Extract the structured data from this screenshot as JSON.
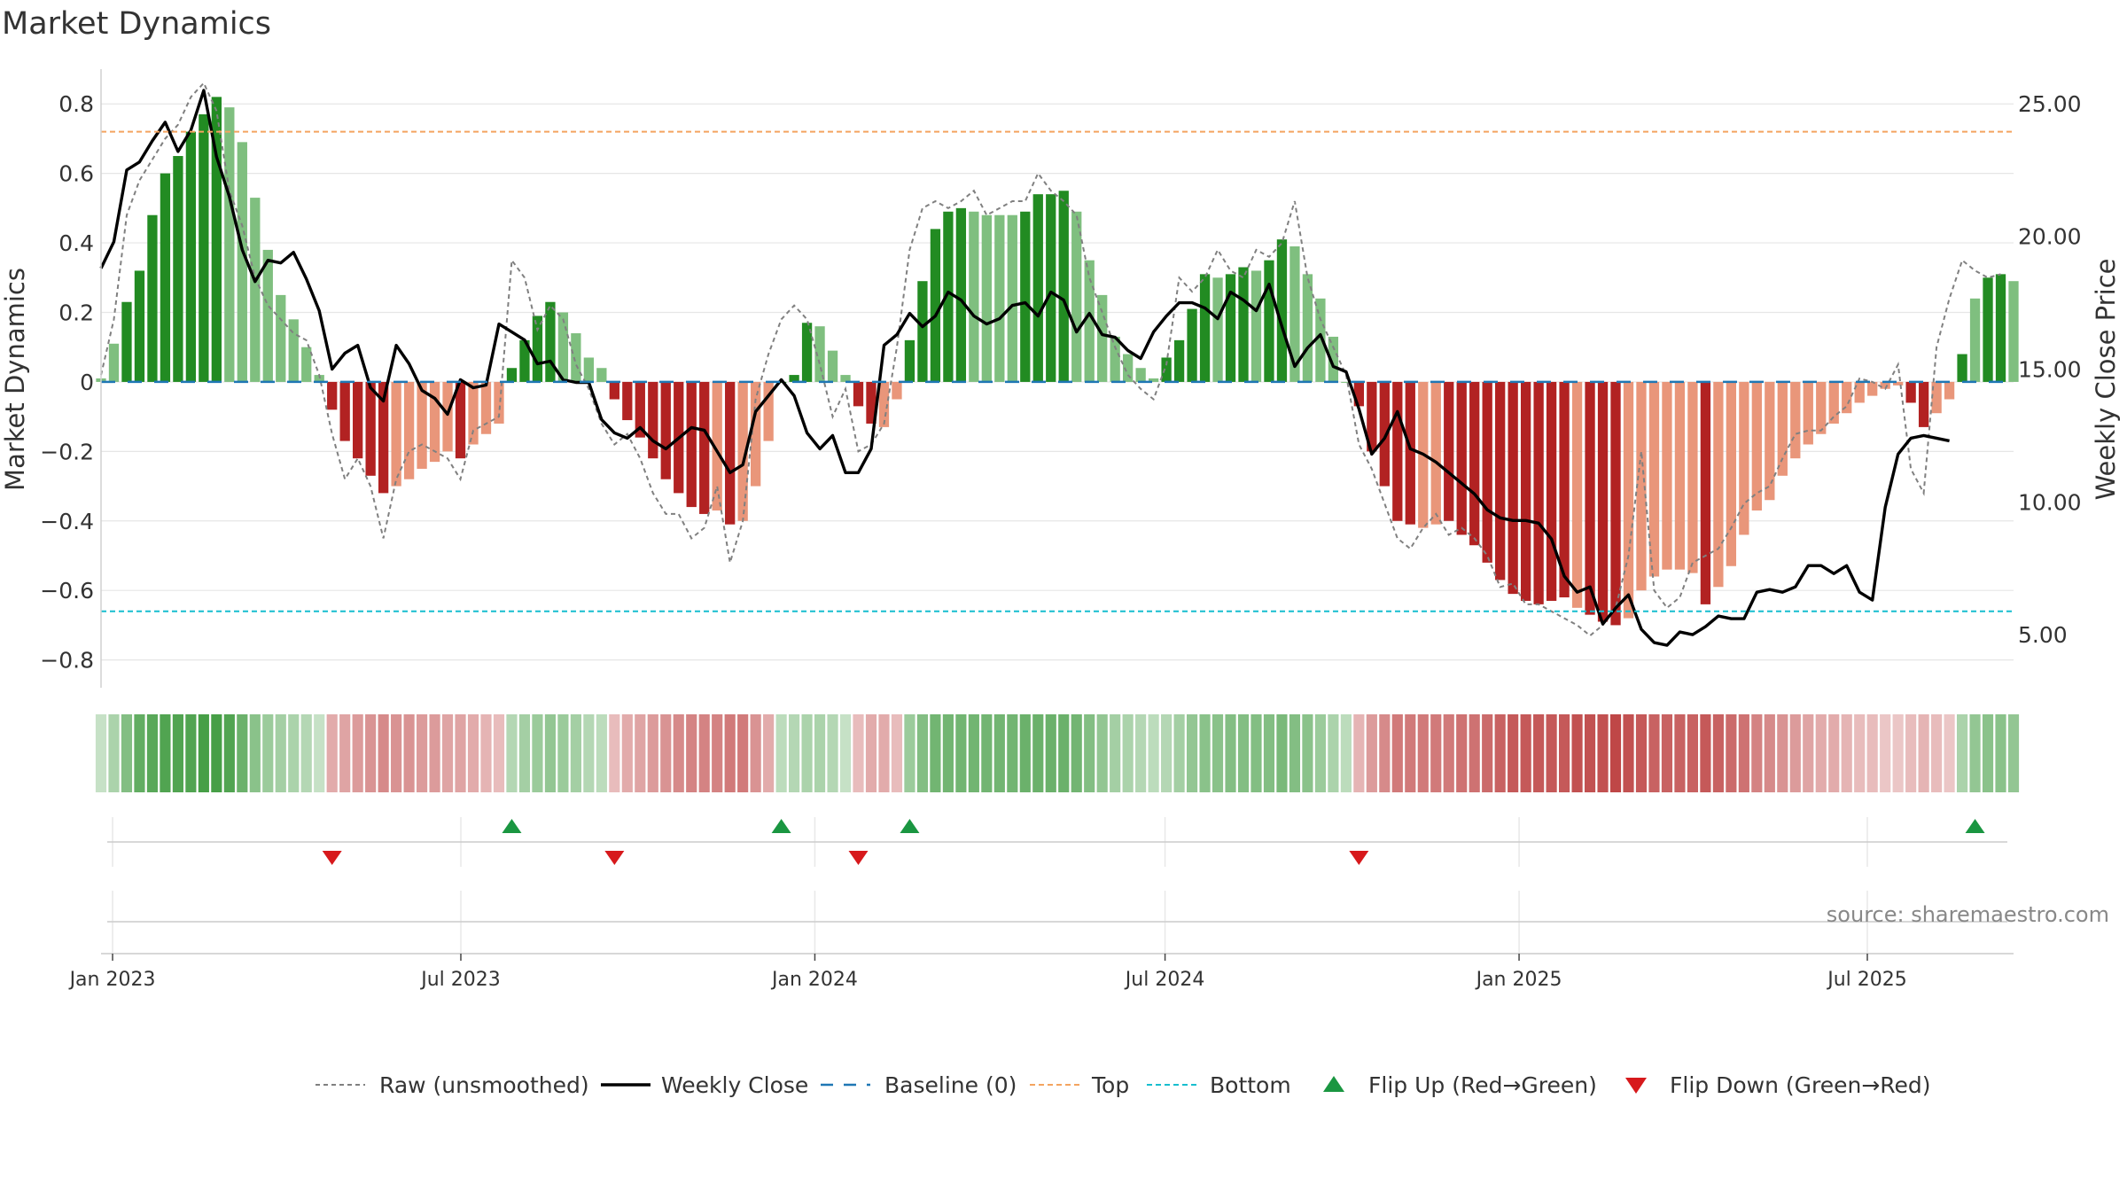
{
  "chart_data": {
    "type": "bar",
    "title": "Market Dynamics",
    "ylabel": "Market Dynamics",
    "y2label": "Weekly Close Price",
    "source": "source: sharemaestro.com",
    "ylim": [
      -0.88,
      0.9
    ],
    "y2lim": [
      3.0,
      26.3
    ],
    "yticks": [
      "0.8",
      "0.6",
      "0.4",
      "0.2",
      "0",
      "−0.2",
      "−0.4",
      "−0.6",
      "−0.8"
    ],
    "y2ticks": [
      "25.00",
      "20.00",
      "15.00",
      "10.00",
      "5.00"
    ],
    "ytick_values": [
      0.8,
      0.6,
      0.4,
      0.2,
      0,
      -0.2,
      -0.4,
      -0.6,
      -0.8
    ],
    "y2tick_values": [
      25,
      20,
      15,
      10,
      5
    ],
    "x_start": "2022-12-26",
    "x_end": "2025-09-15",
    "xticks": [
      {
        "date": "2023-01-01",
        "label": "Jan 2023"
      },
      {
        "date": "2023-07-01",
        "label": "Jul 2023"
      },
      {
        "date": "2024-01-01",
        "label": "Jan 2024"
      },
      {
        "date": "2024-07-01",
        "label": "Jul 2024"
      },
      {
        "date": "2025-01-01",
        "label": "Jan 2025"
      },
      {
        "date": "2025-07-01",
        "label": "Jul 2025"
      }
    ],
    "top_threshold": 0.72,
    "bottom_threshold": -0.66,
    "baseline": 0,
    "grid": true,
    "legend_position": "bottom",
    "legend": [
      {
        "key": "raw",
        "label": "Raw (unsmoothed)"
      },
      {
        "key": "close",
        "label": "Weekly Close"
      },
      {
        "key": "baseline",
        "label": "Baseline (0)"
      },
      {
        "key": "top",
        "label": "Top"
      },
      {
        "key": "bottom",
        "label": "Bottom"
      },
      {
        "key": "flipup",
        "label": "Flip Up (Red→Green)"
      },
      {
        "key": "flipdown",
        "label": "Flip Down (Green→Red)"
      }
    ],
    "colors": {
      "pos_strong": "#228b22",
      "pos_weak": "#7fbf7f",
      "neg_strong": "#b22222",
      "neg_weak": "#e9967a",
      "close": "#000000",
      "raw": "#808080",
      "baseline": "#1f77b4",
      "top": "#f4a460",
      "bottom": "#17becf",
      "flip_up": "#1a9641",
      "flip_down": "#d7191c"
    },
    "dynamics": [
      0.01,
      0.11,
      0.23,
      0.32,
      0.48,
      0.6,
      0.65,
      0.72,
      0.77,
      0.82,
      0.79,
      0.69,
      0.53,
      0.38,
      0.25,
      0.18,
      0.1,
      0.02,
      -0.08,
      -0.17,
      -0.22,
      -0.27,
      -0.32,
      -0.3,
      -0.28,
      -0.25,
      -0.23,
      -0.2,
      -0.22,
      -0.18,
      -0.15,
      -0.12,
      0.04,
      0.12,
      0.19,
      0.23,
      0.2,
      0.14,
      0.07,
      0.04,
      -0.05,
      -0.11,
      -0.16,
      -0.22,
      -0.28,
      -0.32,
      -0.36,
      -0.38,
      -0.37,
      -0.41,
      -0.4,
      -0.3,
      -0.17,
      0.0,
      0.02,
      0.17,
      0.16,
      0.09,
      0.02,
      -0.07,
      -0.12,
      -0.13,
      -0.05,
      0.12,
      0.29,
      0.44,
      0.49,
      0.5,
      0.49,
      0.48,
      0.48,
      0.48,
      0.49,
      0.54,
      0.54,
      0.55,
      0.49,
      0.35,
      0.25,
      0.13,
      0.08,
      0.04,
      0.01,
      0.07,
      0.12,
      0.21,
      0.31,
      0.3,
      0.31,
      0.33,
      0.32,
      0.35,
      0.41,
      0.39,
      0.31,
      0.24,
      0.13,
      0.0,
      -0.07,
      -0.2,
      -0.3,
      -0.4,
      -0.41,
      -0.42,
      -0.41,
      -0.4,
      -0.44,
      -0.47,
      -0.52,
      -0.57,
      -0.61,
      -0.63,
      -0.64,
      -0.63,
      -0.62,
      -0.65,
      -0.67,
      -0.69,
      -0.7,
      -0.68,
      -0.6,
      -0.56,
      -0.54,
      -0.54,
      -0.55,
      -0.64,
      -0.59,
      -0.53,
      -0.44,
      -0.37,
      -0.34,
      -0.27,
      -0.22,
      -0.18,
      -0.15,
      -0.12,
      -0.09,
      -0.06,
      -0.04,
      -0.02,
      -0.01,
      -0.06,
      -0.13,
      -0.09,
      -0.05,
      0.08,
      0.24,
      0.3,
      0.31,
      0.29
    ],
    "strength": [
      0,
      0,
      1,
      1,
      1,
      1,
      1,
      1,
      1,
      1,
      0,
      0,
      0,
      0,
      0,
      0,
      0,
      0,
      1,
      1,
      1,
      1,
      1,
      0,
      0,
      0,
      0,
      0,
      1,
      0,
      0,
      0,
      1,
      1,
      1,
      1,
      0,
      0,
      0,
      0,
      1,
      1,
      1,
      1,
      1,
      1,
      1,
      1,
      0,
      1,
      0,
      0,
      0,
      1,
      1,
      1,
      0,
      0,
      0,
      1,
      1,
      0,
      0,
      1,
      1,
      1,
      1,
      1,
      0,
      0,
      0,
      0,
      1,
      1,
      1,
      1,
      0,
      0,
      0,
      0,
      0,
      0,
      0,
      1,
      1,
      1,
      1,
      0,
      1,
      1,
      0,
      1,
      1,
      0,
      0,
      0,
      0,
      0,
      1,
      1,
      1,
      1,
      1,
      0,
      0,
      1,
      1,
      1,
      1,
      1,
      1,
      1,
      1,
      1,
      1,
      0,
      1,
      1,
      1,
      0,
      0,
      0,
      0,
      0,
      0,
      1,
      0,
      0,
      0,
      0,
      0,
      0,
      0,
      0,
      0,
      0,
      0,
      0,
      0,
      0,
      0,
      1,
      1,
      0,
      0,
      1,
      0,
      1,
      1,
      0
    ],
    "raw": [
      0.02,
      0.18,
      0.48,
      0.58,
      0.64,
      0.7,
      0.74,
      0.82,
      0.86,
      0.78,
      0.55,
      0.45,
      0.3,
      0.22,
      0.18,
      0.14,
      0.12,
      0.02,
      -0.15,
      -0.28,
      -0.22,
      -0.3,
      -0.45,
      -0.28,
      -0.2,
      -0.18,
      -0.2,
      -0.22,
      -0.28,
      -0.14,
      -0.12,
      -0.1,
      0.35,
      0.3,
      0.15,
      0.22,
      0.18,
      0.05,
      -0.02,
      -0.12,
      -0.18,
      -0.15,
      -0.22,
      -0.32,
      -0.38,
      -0.38,
      -0.45,
      -0.42,
      -0.3,
      -0.52,
      -0.4,
      -0.05,
      0.08,
      0.18,
      0.22,
      0.18,
      0.05,
      -0.1,
      -0.02,
      -0.2,
      -0.18,
      -0.12,
      0.1,
      0.38,
      0.5,
      0.52,
      0.5,
      0.52,
      0.55,
      0.48,
      0.5,
      0.52,
      0.52,
      0.6,
      0.55,
      0.52,
      0.48,
      0.3,
      0.2,
      0.1,
      0.02,
      -0.02,
      -0.05,
      0.05,
      0.3,
      0.26,
      0.3,
      0.38,
      0.32,
      0.3,
      0.38,
      0.36,
      0.4,
      0.52,
      0.3,
      0.18,
      0.1,
      0.02,
      -0.18,
      -0.25,
      -0.35,
      -0.45,
      -0.48,
      -0.42,
      -0.38,
      -0.44,
      -0.42,
      -0.45,
      -0.5,
      -0.59,
      -0.58,
      -0.64,
      -0.64,
      -0.66,
      -0.68,
      -0.7,
      -0.73,
      -0.7,
      -0.65,
      -0.5,
      -0.2,
      -0.6,
      -0.65,
      -0.62,
      -0.52,
      -0.5,
      -0.48,
      -0.42,
      -0.35,
      -0.32,
      -0.3,
      -0.22,
      -0.15,
      -0.14,
      -0.14,
      -0.1,
      -0.07,
      0.01,
      0.0,
      -0.02,
      0.05,
      -0.25,
      -0.32,
      0.1,
      0.24,
      0.35,
      0.32,
      0.3,
      0.31
    ],
    "close": [
      18.8,
      19.8,
      22.5,
      22.8,
      23.6,
      24.3,
      23.2,
      24.0,
      25.5,
      23.0,
      21.5,
      19.5,
      18.3,
      19.1,
      19.0,
      19.4,
      18.4,
      17.2,
      15.0,
      15.6,
      15.9,
      14.3,
      13.8,
      15.9,
      15.2,
      14.2,
      13.9,
      13.3,
      14.6,
      14.3,
      14.4,
      16.7,
      16.4,
      16.1,
      15.2,
      15.3,
      14.6,
      14.5,
      14.5,
      13.1,
      12.6,
      12.4,
      12.8,
      12.3,
      12.0,
      12.4,
      12.8,
      12.7,
      11.9,
      11.1,
      11.4,
      13.4,
      14.0,
      14.6,
      14.0,
      12.6,
      12.0,
      12.5,
      11.1,
      11.1,
      12.0,
      15.9,
      16.3,
      17.1,
      16.6,
      17.0,
      17.9,
      17.6,
      17.0,
      16.7,
      16.9,
      17.4,
      17.5,
      17.0,
      17.9,
      17.6,
      16.4,
      17.1,
      16.3,
      16.2,
      15.7,
      15.4,
      16.4,
      17.0,
      17.5,
      17.5,
      17.3,
      16.9,
      17.9,
      17.6,
      17.2,
      18.2,
      16.6,
      15.1,
      15.8,
      16.3,
      15.1,
      14.9,
      13.5,
      11.8,
      12.4,
      13.4,
      12.0,
      11.8,
      11.5,
      11.1,
      10.7,
      10.3,
      9.7,
      9.4,
      9.3,
      9.3,
      9.2,
      8.6,
      7.2,
      6.6,
      6.8,
      5.4,
      6.0,
      6.5,
      5.2,
      4.7,
      4.6,
      5.1,
      5.0,
      5.3,
      5.7,
      5.6,
      5.6,
      6.6,
      6.7,
      6.6,
      6.8,
      7.6,
      7.6,
      7.3,
      7.6,
      6.6,
      6.3,
      9.8,
      11.8,
      12.4,
      12.5,
      12.4,
      12.3
    ],
    "strip_levels": [
      0.15,
      0.3,
      0.55,
      0.75,
      0.8,
      0.85,
      0.85,
      0.85,
      0.9,
      0.9,
      0.85,
      0.7,
      0.5,
      0.4,
      0.35,
      0.3,
      0.25,
      0.15,
      0.3,
      0.35,
      0.4,
      0.45,
      0.5,
      0.45,
      0.45,
      0.4,
      0.4,
      0.35,
      0.35,
      0.3,
      0.25,
      0.2,
      0.25,
      0.35,
      0.4,
      0.45,
      0.4,
      0.35,
      0.25,
      0.2,
      0.2,
      0.3,
      0.35,
      0.4,
      0.45,
      0.5,
      0.55,
      0.55,
      0.55,
      0.6,
      0.6,
      0.45,
      0.3,
      0.2,
      0.25,
      0.3,
      0.3,
      0.25,
      0.15,
      0.2,
      0.3,
      0.3,
      0.2,
      0.4,
      0.55,
      0.65,
      0.65,
      0.65,
      0.65,
      0.65,
      0.65,
      0.65,
      0.7,
      0.7,
      0.7,
      0.7,
      0.65,
      0.55,
      0.45,
      0.35,
      0.3,
      0.25,
      0.2,
      0.25,
      0.35,
      0.45,
      0.5,
      0.5,
      0.55,
      0.55,
      0.55,
      0.55,
      0.6,
      0.55,
      0.5,
      0.4,
      0.3,
      0.2,
      0.25,
      0.4,
      0.5,
      0.6,
      0.6,
      0.6,
      0.6,
      0.6,
      0.65,
      0.65,
      0.7,
      0.75,
      0.8,
      0.8,
      0.8,
      0.8,
      0.8,
      0.85,
      0.85,
      0.85,
      0.9,
      0.85,
      0.8,
      0.75,
      0.75,
      0.75,
      0.75,
      0.8,
      0.75,
      0.7,
      0.65,
      0.55,
      0.5,
      0.45,
      0.4,
      0.35,
      0.3,
      0.3,
      0.25,
      0.2,
      0.2,
      0.15,
      0.15,
      0.2,
      0.25,
      0.2,
      0.15,
      0.3,
      0.45,
      0.5,
      0.5,
      0.45
    ],
    "flip_up_weeks": [
      32,
      53,
      63,
      146
    ],
    "flip_down_weeks": [
      18,
      40,
      59,
      98
    ]
  }
}
